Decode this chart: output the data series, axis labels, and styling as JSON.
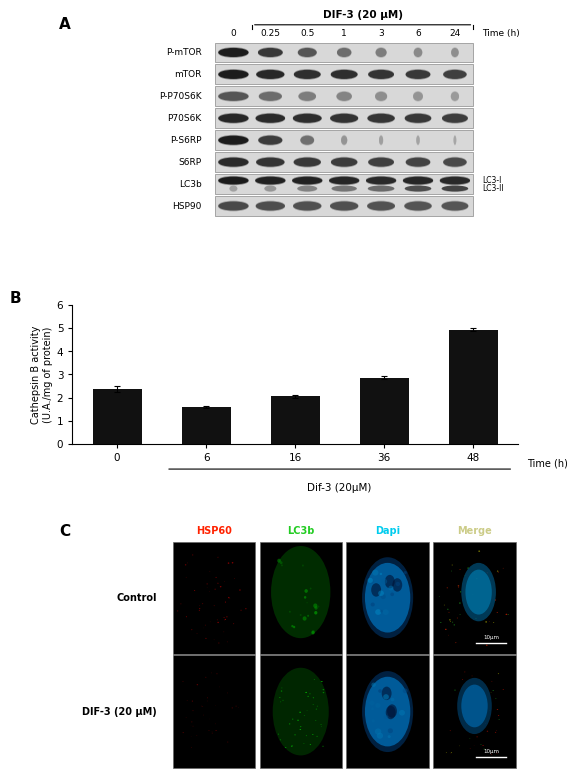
{
  "panel_A": {
    "label": "A",
    "title": "DIF-3 (20 μM)",
    "time_points": [
      "0",
      "0.25",
      "0.5",
      "1",
      "3",
      "6",
      "24"
    ],
    "time_label": "Time (h)",
    "proteins": [
      "P-mTOR",
      "mTOR",
      "P-P70S6K",
      "P70S6K",
      "P-S6RP",
      "S6RP",
      "LC3b",
      "HSP90"
    ],
    "lc3_annotations": [
      "LC3-I",
      "LC3-II"
    ],
    "band_patterns": {
      "P-mTOR": [
        0.88,
        0.72,
        0.55,
        0.42,
        0.32,
        0.25,
        0.22
      ],
      "mTOR": [
        0.88,
        0.82,
        0.78,
        0.78,
        0.75,
        0.72,
        0.68
      ],
      "P-P70S6K": [
        0.55,
        0.42,
        0.32,
        0.28,
        0.22,
        0.18,
        0.15
      ],
      "P70S6K": [
        0.82,
        0.8,
        0.78,
        0.76,
        0.74,
        0.72,
        0.7
      ],
      "P-S6RP": [
        0.88,
        0.7,
        0.4,
        0.18,
        0.12,
        0.1,
        0.08
      ],
      "S6RP": [
        0.8,
        0.75,
        0.72,
        0.7,
        0.68,
        0.65,
        0.62
      ],
      "LC3b_I": [
        0.88,
        0.85,
        0.84,
        0.82,
        0.8,
        0.82,
        0.8
      ],
      "LC3b_II": [
        0.12,
        0.18,
        0.3,
        0.38,
        0.45,
        0.62,
        0.68
      ],
      "HSP90": [
        0.62,
        0.6,
        0.58,
        0.58,
        0.57,
        0.56,
        0.55
      ]
    }
  },
  "panel_B": {
    "label": "B",
    "categories": [
      "0",
      "6",
      "16",
      "36",
      "48"
    ],
    "values": [
      2.37,
      1.58,
      2.05,
      2.85,
      4.92
    ],
    "errors": [
      0.12,
      0.05,
      0.08,
      0.06,
      0.06
    ],
    "bar_color": "#111111",
    "xlabel_main": "Dif-3 (20μM)",
    "time_label": "Time (h)",
    "ylabel_line1": "Cathepsin B activity",
    "ylabel_line2": "(U.A./mg of protein)",
    "ylim": [
      0,
      6
    ],
    "yticks": [
      0,
      1,
      2,
      3,
      4,
      5,
      6
    ]
  },
  "panel_C": {
    "label": "C",
    "col_headers": [
      "HSP60",
      "LC3b",
      "Dapi",
      "Merge"
    ],
    "row_labels": [
      "Control",
      "DIF-3 (20 μM)"
    ],
    "header_colors": [
      "#ff2200",
      "#22cc22",
      "#00ccee",
      "#cccc88"
    ],
    "scale_bar": "10μm"
  },
  "figure_bg": "#ffffff"
}
